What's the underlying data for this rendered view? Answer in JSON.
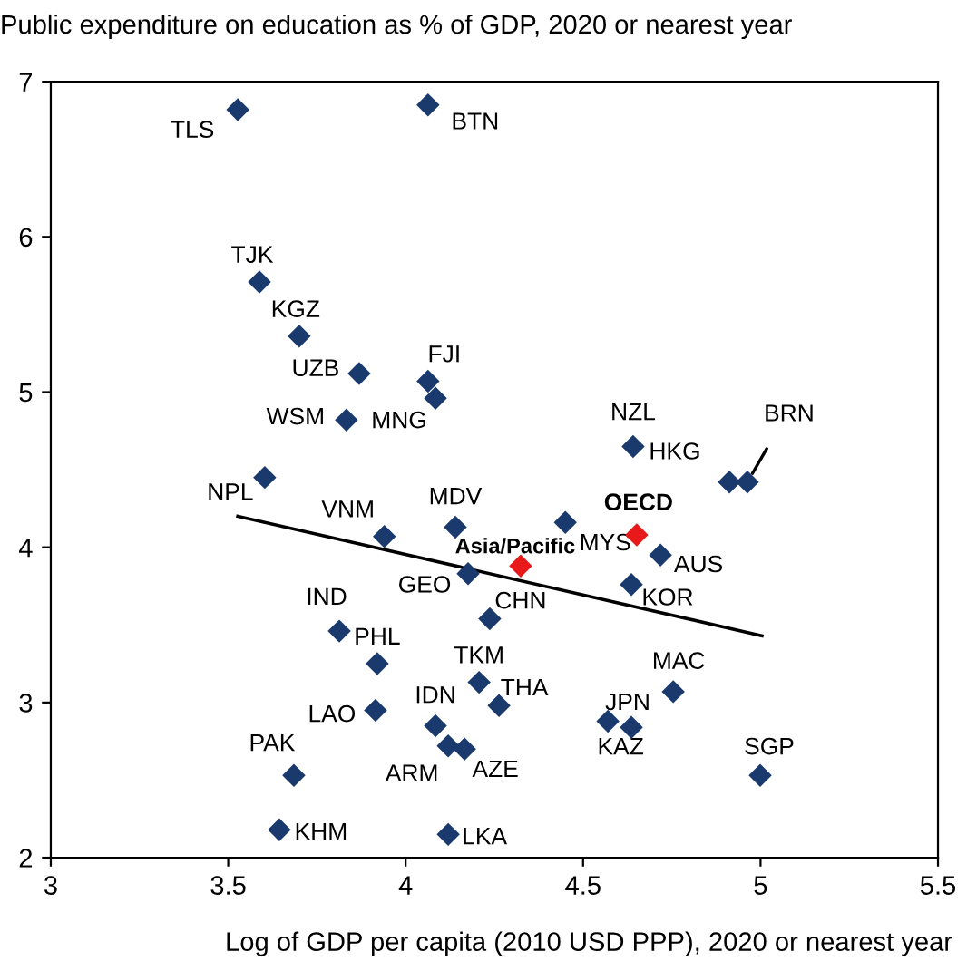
{
  "chart_data": {
    "type": "scatter",
    "ylabel": "Public expenditure on education as % of GDP, 2020 or nearest year",
    "xlabel": "Log of GDP per capita (2010 USD PPP), 2020 or nearest year",
    "xlim": [
      3,
      5.5
    ],
    "xticks": [
      3,
      3.5,
      4,
      4.5,
      5,
      5.5
    ],
    "ylim": [
      2,
      7
    ],
    "yticks": [
      2,
      3,
      4,
      5,
      6,
      7
    ],
    "grid": false,
    "legend": false,
    "marker": "diamond",
    "series": [
      {
        "color": "#1a3a6e",
        "x": [
          3.527,
          4.063,
          3.588,
          3.7,
          3.869,
          4.063,
          4.084,
          3.833,
          4.641,
          4.912,
          4.963,
          3.603,
          3.94,
          4.14,
          4.45,
          4.718,
          4.636,
          4.176,
          4.237,
          3.813,
          3.92,
          4.207,
          4.263,
          4.754,
          3.915,
          4.084,
          4.57,
          4.636,
          4.12,
          4.166,
          3.685,
          4.999,
          3.644,
          4.12
        ],
        "values": [
          6.82,
          6.85,
          5.71,
          5.36,
          5.12,
          5.07,
          4.96,
          4.82,
          4.65,
          4.42,
          4.42,
          4.45,
          4.07,
          4.13,
          4.16,
          3.95,
          3.76,
          3.83,
          3.54,
          3.46,
          3.25,
          3.13,
          2.98,
          3.07,
          2.95,
          2.85,
          2.88,
          2.84,
          2.72,
          2.7,
          2.53,
          2.53,
          2.18,
          2.15
        ],
        "value_labels": [
          "TLS",
          "BTN",
          "TJK",
          "KGZ",
          "UZB",
          "FJI",
          "MNG",
          "WSM",
          "NZL",
          "HKG",
          "BRN",
          "NPL",
          "VNM",
          "MDV",
          "MYS",
          "AUS",
          "KOR",
          "GEO",
          "CHN",
          "IND",
          "PHL",
          "TKM",
          "THA",
          "MAC",
          "LAO",
          "IDN",
          "KAZ",
          "JPN",
          "ARM",
          "AZE",
          "PAK",
          "SGP",
          "KHM",
          "LKA"
        ]
      },
      {
        "color": "#e8191a",
        "x": [
          4.324,
          4.651
        ],
        "values": [
          3.88,
          4.08
        ],
        "value_labels": [
          "Asia/Pacific",
          "OECD"
        ]
      },
      {
        "type": "line",
        "color": "#000000",
        "marker": "none",
        "line_style": "solid",
        "x": [
          3.527,
          5.004
        ],
        "values": [
          4.2,
          3.43
        ]
      }
    ]
  }
}
